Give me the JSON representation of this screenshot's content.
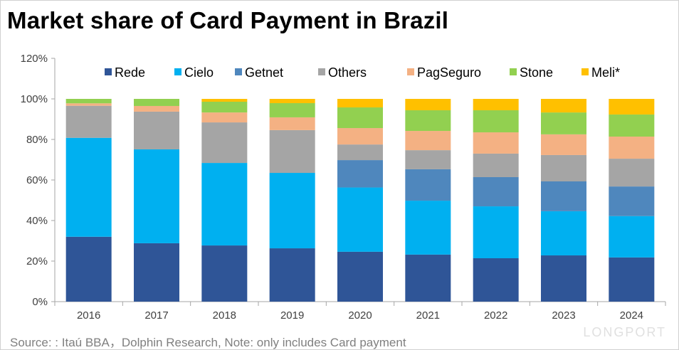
{
  "chart_data": {
    "type": "bar",
    "stacked": true,
    "title": "Market share of Card Payment in Brazil",
    "xlabel": "",
    "ylabel": "",
    "ylim": [
      0,
      120
    ],
    "yticks": [
      "0%",
      "20%",
      "40%",
      "60%",
      "80%",
      "100%",
      "120%"
    ],
    "legend_position": "top",
    "categories": [
      "2016",
      "2017",
      "2018",
      "2019",
      "2020",
      "2021",
      "2022",
      "2023",
      "2024"
    ],
    "series": [
      {
        "name": "Rede",
        "color": "#2F5597",
        "values": [
          32.0,
          28.8,
          27.7,
          26.3,
          24.6,
          23.2,
          21.4,
          22.8,
          21.8
        ]
      },
      {
        "name": "Cielo",
        "color": "#00B0F0",
        "values": [
          48.8,
          46.3,
          40.7,
          37.2,
          31.7,
          26.6,
          25.6,
          21.8,
          20.4
        ]
      },
      {
        "name": "Getnet",
        "color": "#4F87BD",
        "values": [
          0,
          0,
          0,
          0,
          13.5,
          15.5,
          14.4,
          14.7,
          14.6
        ]
      },
      {
        "name": "Others",
        "color": "#A5A5A5",
        "values": [
          15.8,
          18.6,
          20.0,
          21.1,
          7.7,
          9.4,
          11.6,
          13.0,
          13.7
        ]
      },
      {
        "name": "PagSeguro",
        "color": "#F4B183",
        "values": [
          1.2,
          2.8,
          4.9,
          6.3,
          8.1,
          9.5,
          10.5,
          10.2,
          10.9
        ]
      },
      {
        "name": "Stone",
        "color": "#92D050",
        "values": [
          2.2,
          3.5,
          5.3,
          7.0,
          10.2,
          10.2,
          10.9,
          10.8,
          10.9
        ]
      },
      {
        "name": "Meli*",
        "color": "#FFC000",
        "values": [
          0,
          0,
          1.4,
          2.1,
          4.2,
          5.6,
          5.6,
          6.7,
          7.7
        ]
      }
    ]
  },
  "source": "Source: : Itaú BBA，Dolphin Research, Note:  only includes Card payment",
  "watermark": "LONGPORT"
}
